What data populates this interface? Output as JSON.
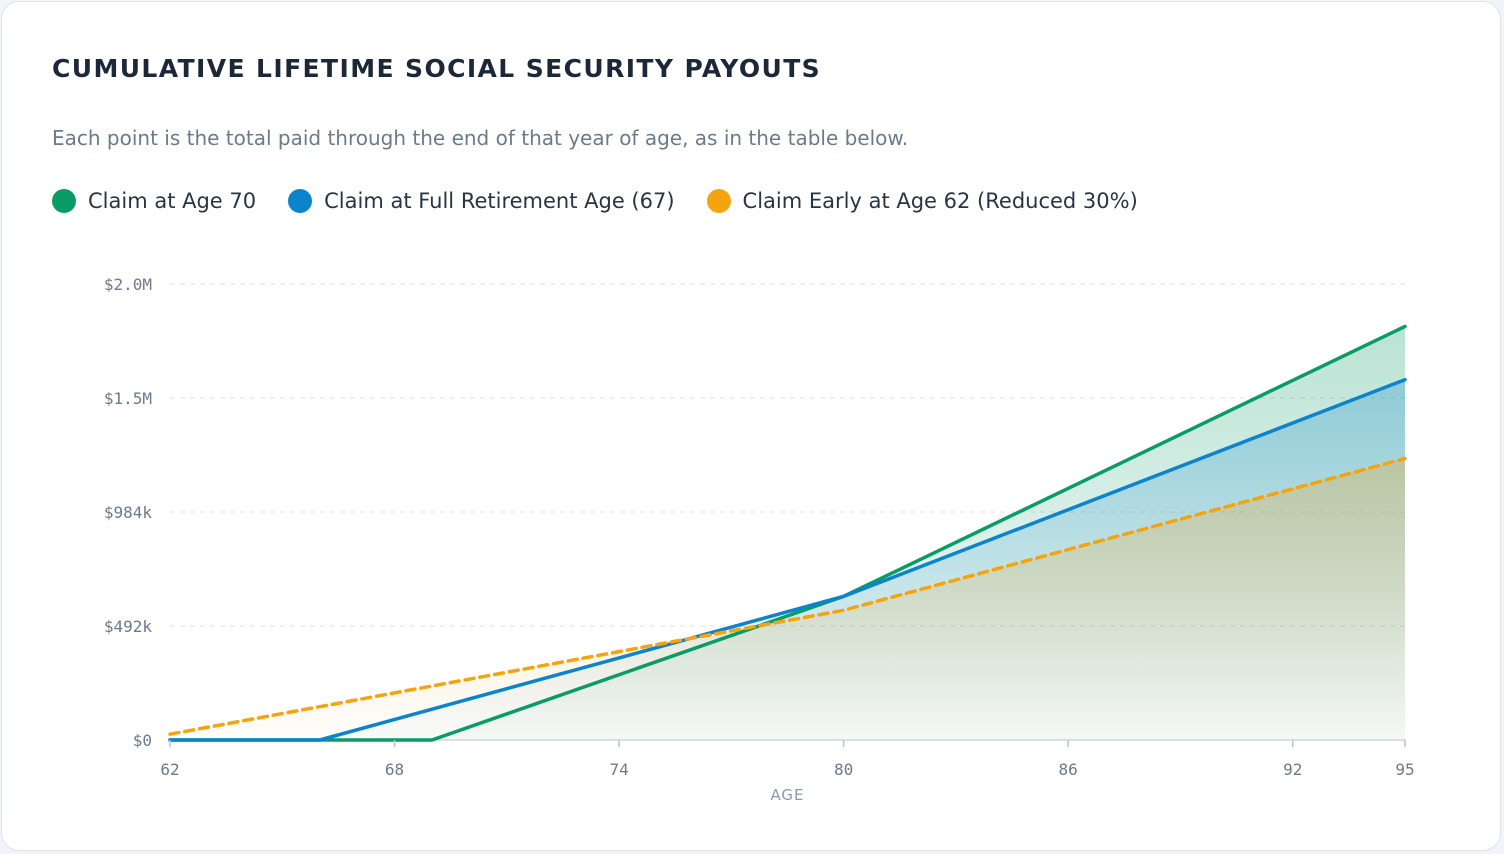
{
  "header": {
    "title": "CUMULATIVE LIFETIME SOCIAL SECURITY PAYOUTS",
    "subtitle": "Each point is the total paid through the end of that year of age, as in the table below."
  },
  "legend": [
    {
      "label": "Claim at Age 70",
      "color": "#0a9b67"
    },
    {
      "label": "Claim at Full Retirement Age (67)",
      "color": "#0b84cc"
    },
    {
      "label": "Claim Early at Age 62 (Reduced 30%)",
      "color": "#f5a30f"
    }
  ],
  "chart_data": {
    "type": "area",
    "xlabel": "AGE",
    "xlim": [
      62,
      95
    ],
    "x_ticks": [
      "62",
      "68",
      "74",
      "80",
      "86",
      "92",
      "95"
    ],
    "ylim": [
      0,
      1968000
    ],
    "y_ticks": [
      {
        "value": 0,
        "label": "$0"
      },
      {
        "value": 492000,
        "label": "$492k"
      },
      {
        "value": 984000,
        "label": "$984k"
      },
      {
        "value": 1476000,
        "label": "$1.5M"
      },
      {
        "value": 1968000,
        "label": "$2.0M"
      }
    ],
    "grid": true,
    "legend_position": "top-left",
    "series": [
      {
        "name": "Claim at Age 70",
        "color": "#0a9b67",
        "style": "solid",
        "points": [
          [
            62,
            0
          ],
          [
            69,
            0
          ],
          [
            80,
            620000
          ],
          [
            95,
            1785000
          ]
        ]
      },
      {
        "name": "Claim at Full Retirement Age (67)",
        "color": "#0b84cc",
        "style": "solid",
        "points": [
          [
            62,
            0
          ],
          [
            66,
            0
          ],
          [
            80,
            620000
          ],
          [
            95,
            1555000
          ]
        ]
      },
      {
        "name": "Claim Early at Age 62 (Reduced 30%)",
        "color": "#f5a30f",
        "style": "dashed",
        "points": [
          [
            62,
            25000
          ],
          [
            80,
            560000
          ],
          [
            95,
            1215000
          ]
        ]
      }
    ]
  }
}
